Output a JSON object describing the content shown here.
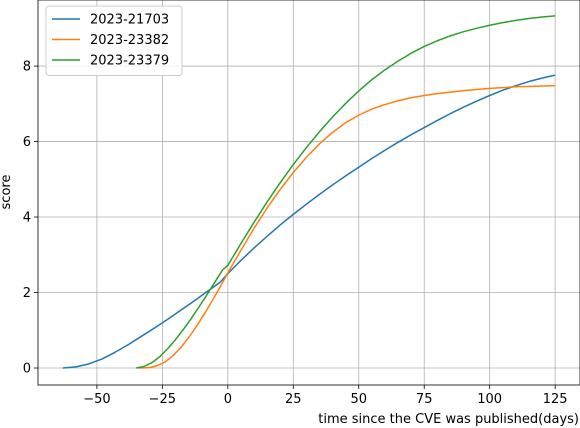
{
  "chart_data": {
    "type": "line",
    "title": "",
    "xlabel": "time since the CVE was published(days)",
    "ylabel": "score",
    "xlim": [
      -72.5,
      134.5
    ],
    "ylim": [
      -0.45,
      9.75
    ],
    "xticks": [
      -50,
      -25,
      0,
      25,
      50,
      75,
      100,
      125
    ],
    "xtick_labels": [
      "−50",
      "−25",
      "0",
      "25",
      "50",
      "75",
      "100",
      "125"
    ],
    "yticks": [
      0,
      2,
      4,
      6,
      8
    ],
    "ytick_labels": [
      "0",
      "2",
      "4",
      "6",
      "8"
    ],
    "grid": true,
    "legend_position": "top-left",
    "series": [
      {
        "name": "2023-21703",
        "color": "#1f77b4",
        "points": [
          [
            -63,
            0.0
          ],
          [
            -58,
            0.03
          ],
          [
            -53,
            0.11
          ],
          [
            -48,
            0.24
          ],
          [
            -43,
            0.42
          ],
          [
            -38,
            0.62
          ],
          [
            -33,
            0.84
          ],
          [
            -28,
            1.06
          ],
          [
            -23,
            1.29
          ],
          [
            -18,
            1.53
          ],
          [
            -13,
            1.77
          ],
          [
            -8,
            2.02
          ],
          [
            -3,
            2.27
          ],
          [
            0,
            2.5
          ],
          [
            5,
            2.85
          ],
          [
            10,
            3.18
          ],
          [
            15,
            3.49
          ],
          [
            20,
            3.79
          ],
          [
            25,
            4.07
          ],
          [
            30,
            4.34
          ],
          [
            35,
            4.6
          ],
          [
            40,
            4.85
          ],
          [
            45,
            5.09
          ],
          [
            50,
            5.32
          ],
          [
            55,
            5.55
          ],
          [
            60,
            5.77
          ],
          [
            65,
            5.98
          ],
          [
            70,
            6.18
          ],
          [
            75,
            6.37
          ],
          [
            80,
            6.56
          ],
          [
            85,
            6.74
          ],
          [
            90,
            6.91
          ],
          [
            95,
            7.07
          ],
          [
            100,
            7.22
          ],
          [
            105,
            7.36
          ],
          [
            110,
            7.48
          ],
          [
            115,
            7.59
          ],
          [
            120,
            7.68
          ],
          [
            125,
            7.76
          ]
        ]
      },
      {
        "name": "2023-23382",
        "color": "#ff7f0e",
        "points": [
          [
            -34,
            0.0
          ],
          [
            -30,
            0.01
          ],
          [
            -27,
            0.06
          ],
          [
            -24,
            0.16
          ],
          [
            -21,
            0.32
          ],
          [
            -18,
            0.54
          ],
          [
            -15,
            0.8
          ],
          [
            -12,
            1.1
          ],
          [
            -9,
            1.43
          ],
          [
            -6,
            1.78
          ],
          [
            -3,
            2.14
          ],
          [
            0,
            2.52
          ],
          [
            5,
            3.12
          ],
          [
            10,
            3.7
          ],
          [
            15,
            4.24
          ],
          [
            20,
            4.73
          ],
          [
            25,
            5.18
          ],
          [
            30,
            5.58
          ],
          [
            35,
            5.94
          ],
          [
            40,
            6.24
          ],
          [
            45,
            6.5
          ],
          [
            50,
            6.7
          ],
          [
            55,
            6.86
          ],
          [
            60,
            6.98
          ],
          [
            65,
            7.08
          ],
          [
            70,
            7.16
          ],
          [
            75,
            7.22
          ],
          [
            80,
            7.27
          ],
          [
            85,
            7.31
          ],
          [
            90,
            7.35
          ],
          [
            95,
            7.38
          ],
          [
            100,
            7.41
          ],
          [
            105,
            7.43
          ],
          [
            110,
            7.45
          ],
          [
            115,
            7.46
          ],
          [
            120,
            7.47
          ],
          [
            125,
            7.48
          ]
        ]
      },
      {
        "name": "2023-23379",
        "color": "#2ca02c",
        "points": [
          [
            -35,
            0.0
          ],
          [
            -32,
            0.04
          ],
          [
            -29,
            0.14
          ],
          [
            -26,
            0.3
          ],
          [
            -23,
            0.51
          ],
          [
            -20,
            0.75
          ],
          [
            -17,
            1.02
          ],
          [
            -14,
            1.31
          ],
          [
            -11,
            1.62
          ],
          [
            -8,
            1.94
          ],
          [
            -5,
            2.27
          ],
          [
            -2,
            2.6
          ],
          [
            0,
            2.72
          ],
          [
            5,
            3.3
          ],
          [
            10,
            3.86
          ],
          [
            15,
            4.4
          ],
          [
            20,
            4.91
          ],
          [
            25,
            5.39
          ],
          [
            30,
            5.84
          ],
          [
            35,
            6.26
          ],
          [
            40,
            6.65
          ],
          [
            45,
            7.01
          ],
          [
            50,
            7.34
          ],
          [
            55,
            7.64
          ],
          [
            60,
            7.9
          ],
          [
            65,
            8.13
          ],
          [
            70,
            8.34
          ],
          [
            75,
            8.52
          ],
          [
            80,
            8.67
          ],
          [
            85,
            8.8
          ],
          [
            90,
            8.91
          ],
          [
            95,
            9.0
          ],
          [
            100,
            9.08
          ],
          [
            105,
            9.15
          ],
          [
            110,
            9.21
          ],
          [
            115,
            9.26
          ],
          [
            120,
            9.3
          ],
          [
            125,
            9.33
          ]
        ]
      }
    ]
  }
}
